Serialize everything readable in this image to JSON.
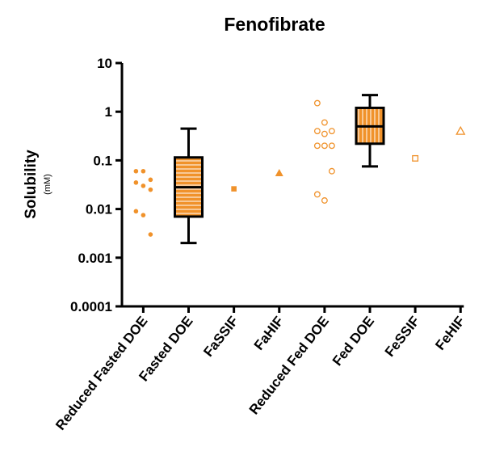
{
  "chart_data": {
    "type": "box",
    "title": "Fenofibrate",
    "y_label": "Solubility",
    "y_unit": "(mM)",
    "log_y": true,
    "ylim": [
      0.0001,
      10
    ],
    "yticks": [
      0.0001,
      0.001,
      0.01,
      0.1,
      1,
      10
    ],
    "color": "#f0922b",
    "categories": [
      "Reduced Fasted DOE",
      "Fasted DOE",
      "FaSSIF",
      "FaHIF",
      "Reduced Fed DOE",
      "Fed DOE",
      "FeSSIF",
      "FeHIF"
    ],
    "markers": [
      "circle",
      "box",
      "square",
      "triangle",
      "circle-open",
      "box",
      "square-open",
      "triangle-open"
    ],
    "points": [
      [
        0.06,
        0.06,
        0.04,
        0.035,
        0.03,
        0.025,
        0.009,
        0.0075,
        0.003
      ],
      null,
      [
        0.026
      ],
      [
        0.055
      ],
      [
        1.5,
        0.6,
        0.4,
        0.4,
        0.35,
        0.2,
        0.2,
        0.2,
        0.06,
        0.02,
        0.015
      ],
      null,
      [
        0.11
      ],
      [
        0.4
      ]
    ],
    "boxes": [
      null,
      {
        "whisker_low": 0.002,
        "q1": 0.007,
        "median": 0.028,
        "q3": 0.115,
        "whisker_high": 0.45,
        "stripes": "horizontal"
      },
      null,
      null,
      null,
      {
        "whisker_low": 0.075,
        "q1": 0.22,
        "median": 0.5,
        "q3": 1.2,
        "whisker_high": 2.2,
        "stripes": "vertical"
      },
      null,
      null
    ]
  }
}
